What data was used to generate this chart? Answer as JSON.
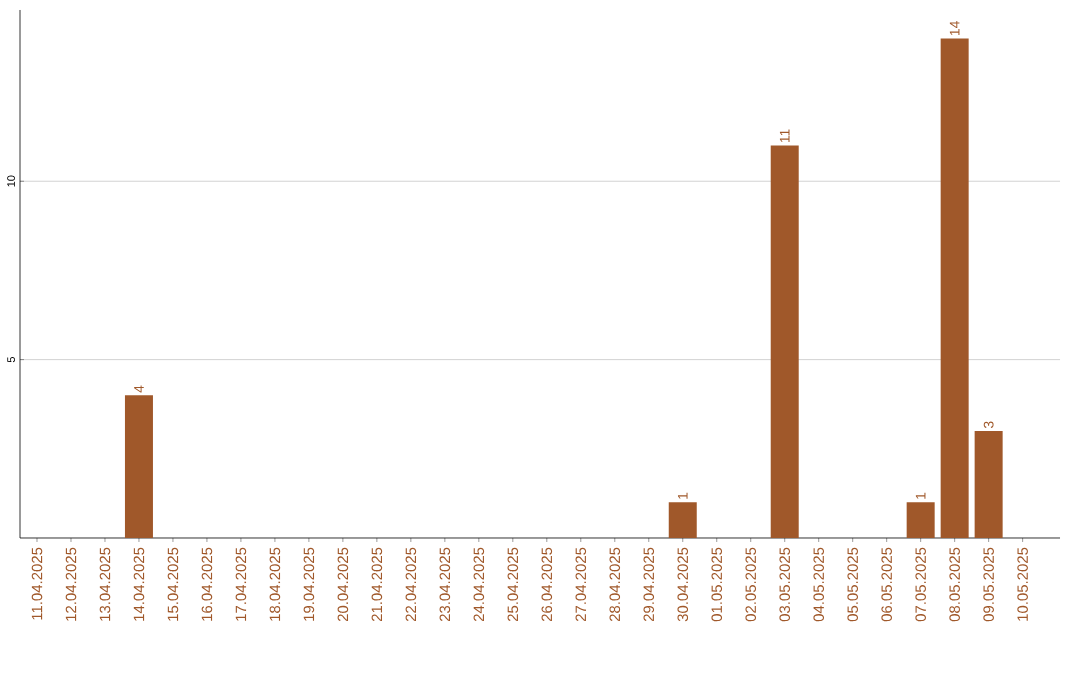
{
  "chart_data": {
    "type": "bar",
    "color": "#a0582a",
    "categories": [
      "11.04.2025",
      "12.04.2025",
      "13.04.2025",
      "14.04.2025",
      "15.04.2025",
      "16.04.2025",
      "17.04.2025",
      "18.04.2025",
      "19.04.2025",
      "20.04.2025",
      "21.04.2025",
      "22.04.2025",
      "23.04.2025",
      "24.04.2025",
      "25.04.2025",
      "26.04.2025",
      "27.04.2025",
      "28.04.2025",
      "29.04.2025",
      "30.04.2025",
      "01.05.2025",
      "02.05.2025",
      "03.05.2025",
      "04.05.2025",
      "05.05.2025",
      "06.05.2025",
      "07.05.2025",
      "08.05.2025",
      "09.05.2025",
      "10.05.2025"
    ],
    "values": [
      0,
      0,
      0,
      4,
      0,
      0,
      0,
      0,
      0,
      0,
      0,
      0,
      0,
      0,
      0,
      0,
      0,
      0,
      0,
      1,
      0,
      0,
      11,
      0,
      0,
      0,
      1,
      14,
      3,
      0
    ],
    "value_labels": [
      null,
      null,
      null,
      "4",
      null,
      null,
      null,
      null,
      null,
      null,
      null,
      null,
      null,
      null,
      null,
      null,
      null,
      null,
      null,
      "1",
      null,
      null,
      "11",
      null,
      null,
      null,
      "1",
      "14",
      "3",
      null
    ],
    "ylim": [
      0,
      14.8
    ],
    "yticks": [
      5,
      10
    ],
    "grid": "y"
  }
}
